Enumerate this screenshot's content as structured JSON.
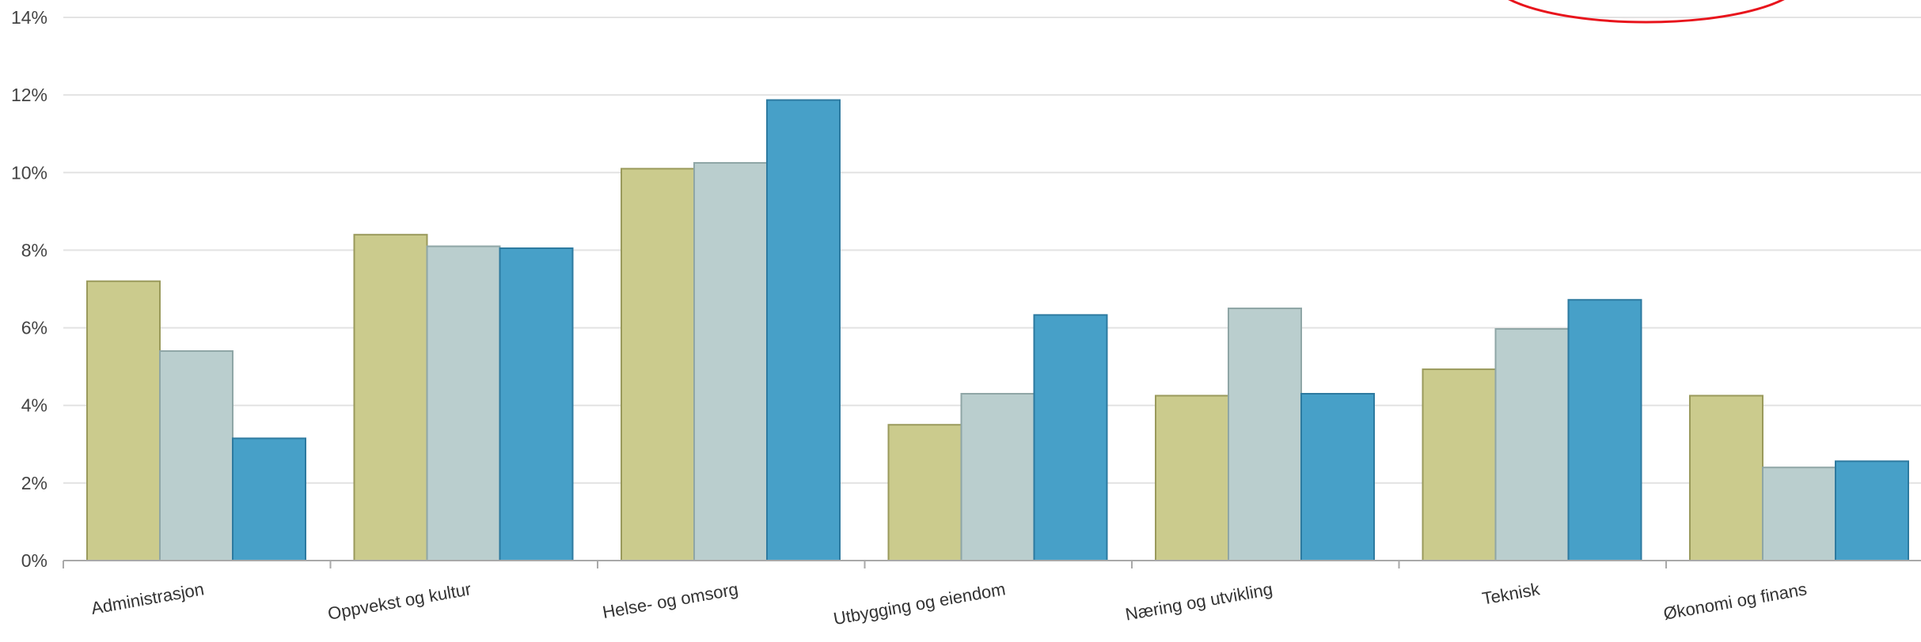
{
  "chart_data": {
    "type": "bar",
    "title": "",
    "xlabel": "",
    "ylabel": "",
    "ylim": [
      0,
      14
    ],
    "yticks": [
      "0%",
      "2%",
      "4%",
      "6%",
      "8%",
      "10%",
      "12%",
      "14%"
    ],
    "y_unit_suffix": "%",
    "grid": true,
    "legend": "none",
    "categories": [
      "Administrasjon",
      "Oppvekst og kultur",
      "Helse- og omsorg",
      "Utbygging og eiendom",
      "Næring og utvikling",
      "Teknisk",
      "Økonomi og finans"
    ],
    "series": [
      {
        "color": "#cbcb8d",
        "edge": "#9a9a5c",
        "values": [
          7.2,
          8.4,
          10.1,
          3.5,
          4.25,
          4.93,
          4.25
        ]
      },
      {
        "color": "#bacece",
        "edge": "#8fa6a6",
        "values": [
          5.4,
          8.1,
          10.25,
          4.3,
          6.5,
          5.97,
          2.4
        ]
      },
      {
        "color": "#47a0c8",
        "edge": "#2d7aa0",
        "values": [
          3.15,
          8.05,
          11.87,
          6.33,
          4.3,
          6.72,
          2.56
        ]
      }
    ],
    "annotations": [
      {
        "shape": "ellipse",
        "color": "#e8141c"
      }
    ]
  }
}
